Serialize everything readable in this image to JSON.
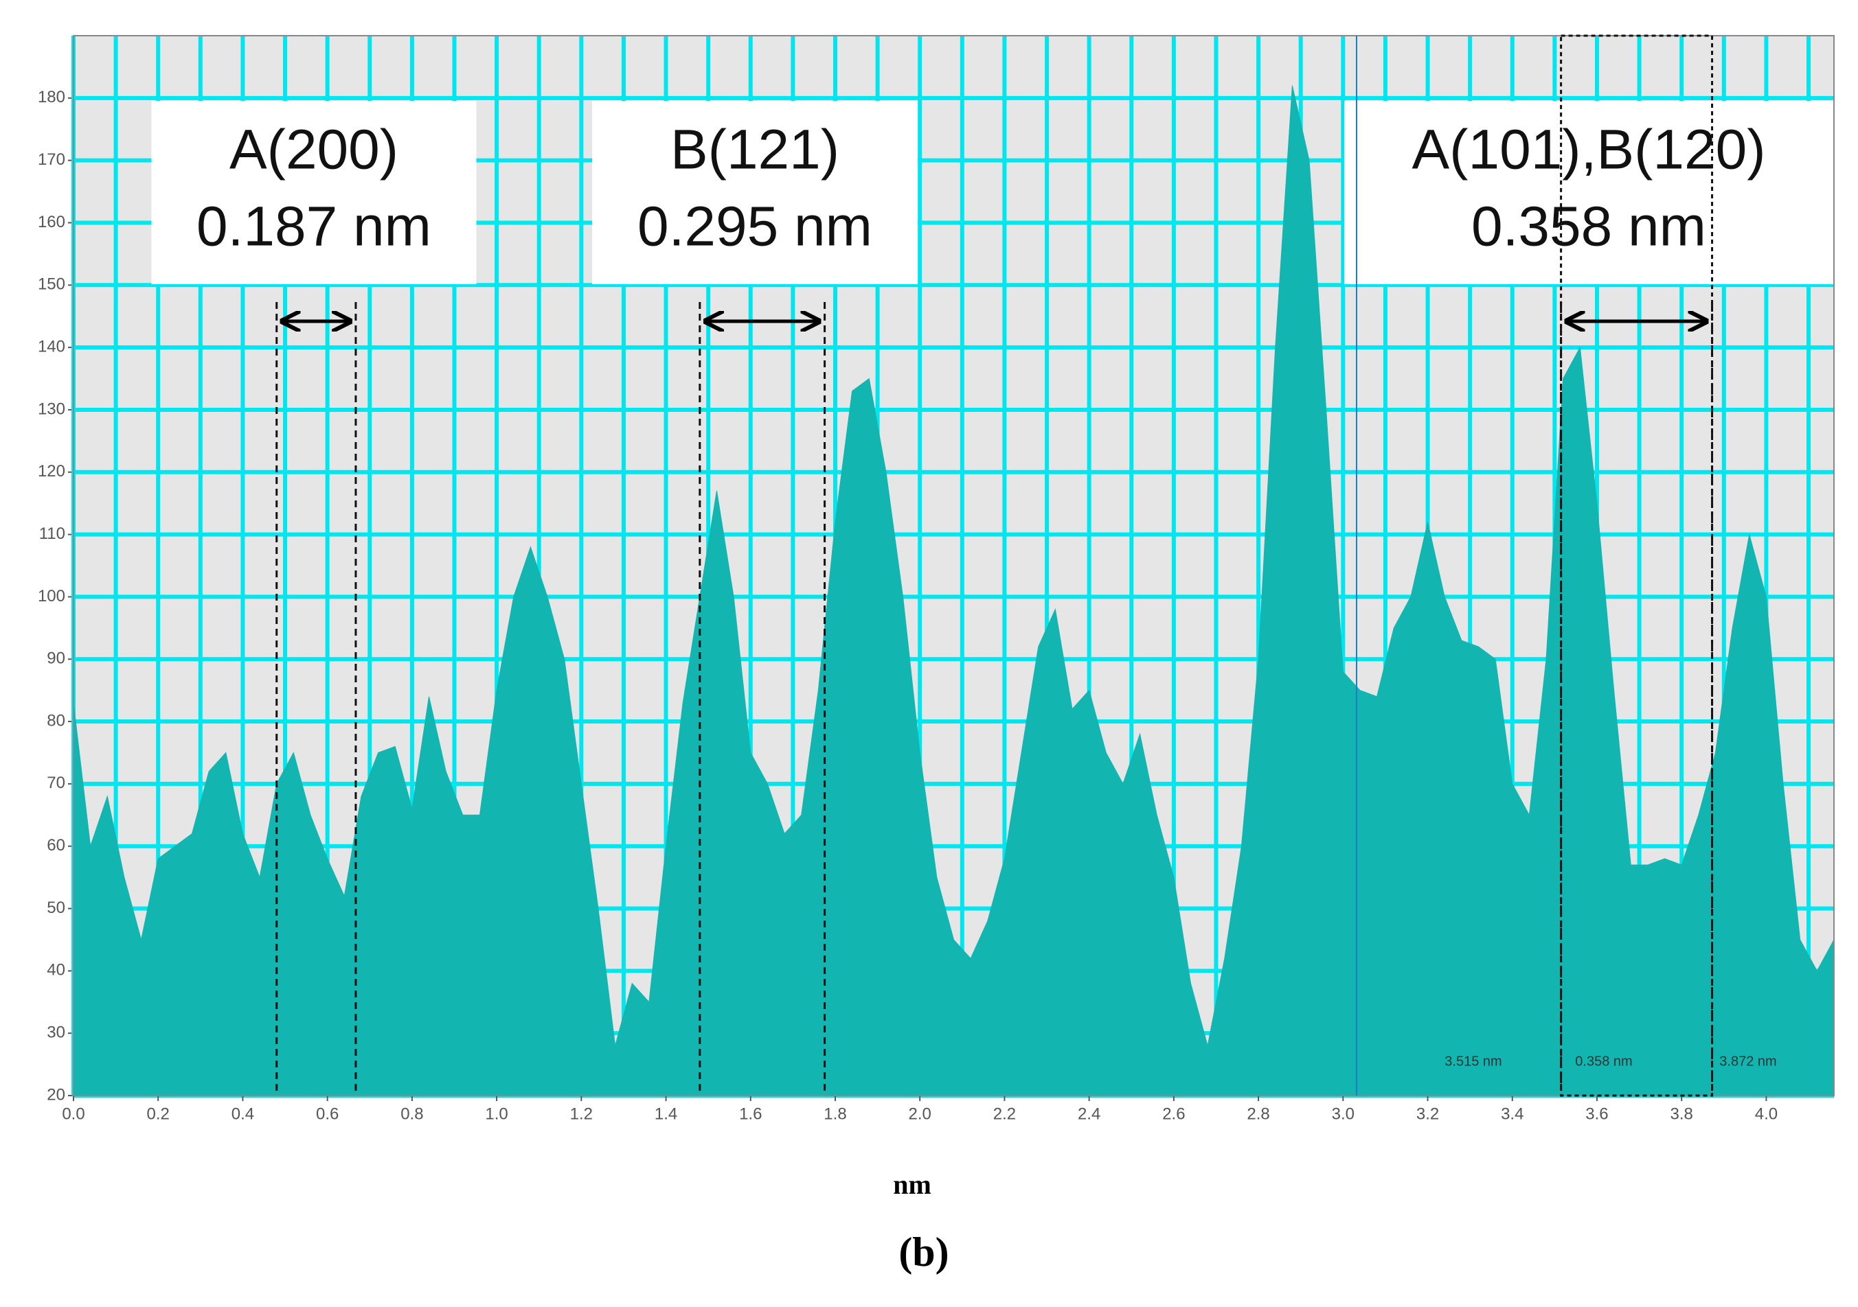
{
  "chart_data": {
    "type": "area",
    "x": [
      0,
      0.04,
      0.08,
      0.12,
      0.16,
      0.2,
      0.24,
      0.28,
      0.32,
      0.36,
      0.4,
      0.44,
      0.48,
      0.52,
      0.56,
      0.6,
      0.64,
      0.68,
      0.72,
      0.76,
      0.8,
      0.84,
      0.88,
      0.92,
      0.96,
      1.0,
      1.04,
      1.08,
      1.12,
      1.16,
      1.2,
      1.24,
      1.28,
      1.32,
      1.36,
      1.4,
      1.44,
      1.48,
      1.52,
      1.56,
      1.6,
      1.64,
      1.68,
      1.72,
      1.76,
      1.8,
      1.84,
      1.88,
      1.92,
      1.96,
      2.0,
      2.04,
      2.08,
      2.12,
      2.16,
      2.2,
      2.24,
      2.28,
      2.32,
      2.36,
      2.4,
      2.44,
      2.48,
      2.52,
      2.56,
      2.6,
      2.64,
      2.68,
      2.72,
      2.76,
      2.8,
      2.84,
      2.88,
      2.92,
      2.96,
      3.0,
      3.04,
      3.08,
      3.12,
      3.16,
      3.2,
      3.24,
      3.28,
      3.32,
      3.36,
      3.4,
      3.44,
      3.48,
      3.52,
      3.56,
      3.6,
      3.64,
      3.68,
      3.72,
      3.76,
      3.8,
      3.84,
      3.88,
      3.92,
      3.96,
      4.0,
      4.04,
      4.08,
      4.12,
      4.16
    ],
    "values": [
      83,
      60,
      68,
      55,
      45,
      58,
      60,
      62,
      72,
      75,
      62,
      55,
      70,
      75,
      65,
      58,
      52,
      68,
      75,
      76,
      66,
      84,
      72,
      65,
      65,
      85,
      100,
      108,
      100,
      90,
      70,
      50,
      28,
      38,
      35,
      60,
      83,
      100,
      117,
      100,
      75,
      70,
      62,
      65,
      85,
      112,
      133,
      135,
      120,
      100,
      75,
      55,
      45,
      42,
      48,
      58,
      75,
      92,
      98,
      82,
      85,
      75,
      70,
      78,
      65,
      55,
      38,
      28,
      42,
      60,
      90,
      140,
      182,
      170,
      130,
      88,
      85,
      84,
      95,
      100,
      112,
      100,
      93,
      92,
      90,
      70,
      65,
      90,
      135,
      140,
      115,
      85,
      57,
      57,
      58,
      57,
      65,
      75,
      95,
      110,
      100,
      70,
      45,
      40,
      45
    ],
    "color": "#13b5b0",
    "grid_color": "#00e6ee",
    "background": "#e6e6e6",
    "xlim": [
      0,
      4.16
    ],
    "ylim": [
      20,
      190
    ],
    "xticks": [
      {
        "value": 0,
        "label": "0.0"
      },
      0.2,
      0.4,
      0.6,
      0.8,
      {
        "value": 1,
        "label": "1.0"
      },
      1.2,
      1.4,
      1.6,
      1.8,
      {
        "value": 2,
        "label": "2.0"
      },
      2.2,
      2.4,
      2.6,
      2.8,
      {
        "value": 3,
        "label": "3.0"
      },
      3.2,
      3.4,
      3.6,
      3.8,
      {
        "value": 4,
        "label": "4.0"
      }
    ],
    "yticks": [
      20,
      30,
      40,
      50,
      60,
      70,
      80,
      90,
      100,
      110,
      120,
      130,
      140,
      150,
      160,
      170,
      180
    ],
    "grid": true,
    "x_label": "nm",
    "caption": "(b)",
    "annotations": [
      {
        "label": "A(200)",
        "text": "0.187 nm",
        "start": 0.48,
        "end": 0.667
      },
      {
        "label": "B(121)",
        "text": "0.295 nm",
        "start": 1.48,
        "end": 1.775
      },
      {
        "label": "A(101),B(120)",
        "text": "0.358 nm",
        "start": 3.515,
        "end": 3.872
      }
    ],
    "cursor_labels": [
      "3.515 nm",
      "0.358 nm",
      "3.872 nm"
    ]
  }
}
